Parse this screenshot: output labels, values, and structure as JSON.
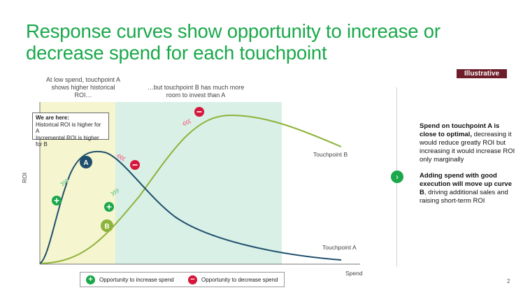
{
  "slide": {
    "title": "Response curves show opportunity to increase or decrease spend for each touchpoint",
    "badge": "Illustrative",
    "annotation_a": "At low spend, touchpoint A shows higher historical ROI…",
    "annotation_b": "…but touchpoint B has much more room to invest than A",
    "callout": {
      "heading": "We are here:",
      "line1": "Historical ROI is higher for A",
      "line2": "Incremental ROI is higher for B"
    },
    "curve_labels": {
      "b": "Touchpoint B",
      "a": "Touchpoint A"
    },
    "axes": {
      "x": "Spend",
      "y": "ROI"
    },
    "points": {
      "a": "A",
      "b": "B"
    },
    "legend": {
      "increase": "Opportunity to increase spend",
      "decrease": "Opportunity to decrease spend"
    },
    "right_panel": {
      "p1_bold": "Spend on touchpoint A is close to optimal,",
      "p1_rest": " decreasing it would reduce greatly ROI but increasing it would increase ROI only marginally",
      "p2_bold": "Adding spend with good execution will move up curve B",
      "p2_rest": ", driving additional sales and raising short-term ROI"
    },
    "page_number": "2"
  },
  "colors": {
    "title_green": "#1aa84a",
    "badge_bg": "#6e1e2b",
    "curve_a": "#1f4e6b",
    "curve_b": "#8db33a",
    "zone_a": "#f5f5d0",
    "zone_b": "#d8f0e6",
    "increase": "#1aa84a",
    "decrease": "#d6163a"
  },
  "icons": [
    "plus-icon",
    "minus-icon",
    "chevron-right-icon",
    "triple-chevron-icon"
  ]
}
